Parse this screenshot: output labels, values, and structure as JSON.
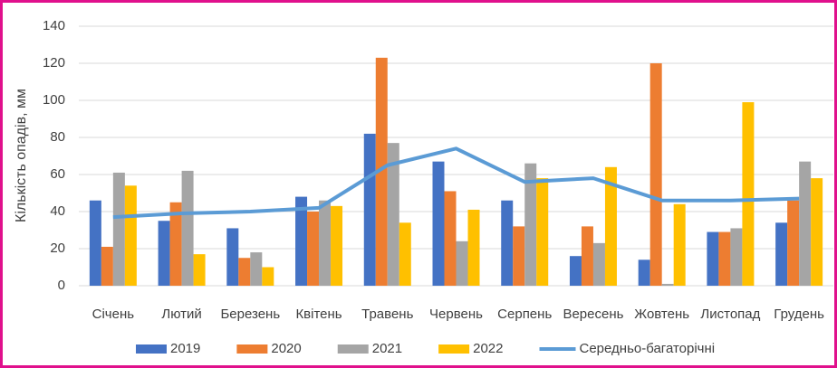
{
  "chart_data": {
    "type": "bar",
    "y_label": "Кількість опадів, мм",
    "categories": [
      "Січень",
      "Лютий",
      "Березень",
      "Квітень",
      "Травень",
      "Червень",
      "Серпень",
      "Вересень",
      "Жовтень",
      "Листопад",
      "Грудень"
    ],
    "series": [
      {
        "name": "2019",
        "color": "#4472c4",
        "values": [
          46,
          35,
          31,
          48,
          82,
          67,
          46,
          16,
          14,
          29,
          34
        ]
      },
      {
        "name": "2020",
        "color": "#ed7d31",
        "values": [
          21,
          45,
          15,
          40,
          123,
          51,
          32,
          32,
          120,
          29,
          46
        ]
      },
      {
        "name": "2021",
        "color": "#a5a5a5",
        "values": [
          61,
          62,
          18,
          46,
          77,
          24,
          66,
          23,
          1,
          31,
          67
        ]
      },
      {
        "name": "2022",
        "color": "#ffc000",
        "values": [
          54,
          17,
          10,
          43,
          34,
          41,
          58,
          64,
          44,
          99,
          58
        ]
      },
      {
        "name": "Середньо-багаторічні",
        "color": "#5b9bd5",
        "type": "line",
        "values": [
          37,
          39,
          40,
          42,
          65,
          74,
          56,
          58,
          46,
          46,
          47
        ]
      }
    ],
    "ylim": [
      0,
      140
    ],
    "yticks": [
      0,
      20,
      40,
      60,
      80,
      100,
      120,
      140
    ],
    "grid": true,
    "legend": "bottom"
  }
}
